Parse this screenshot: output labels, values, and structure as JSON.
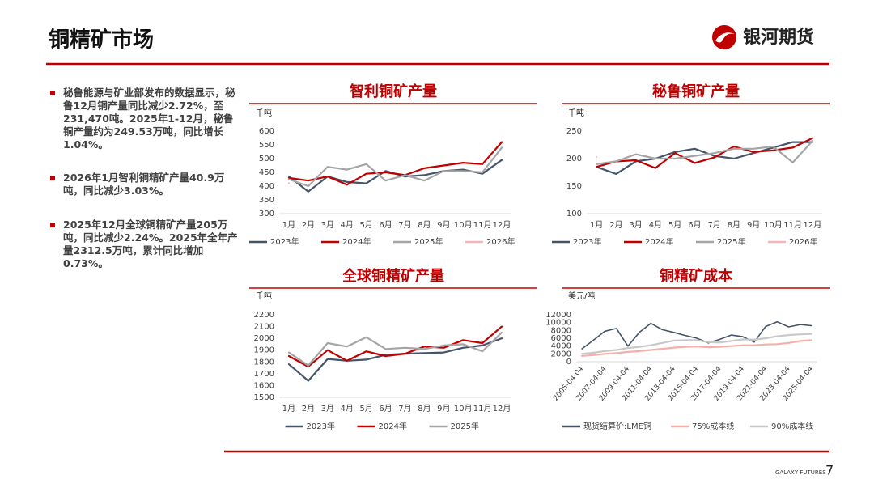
{
  "header": {
    "title": "铜精矿市场",
    "logo": "银河期货"
  },
  "bullets": [
    "秘鲁能源与矿业部发布的数据显示，秘鲁12月铜产量同比减少2.72%，至231,470吨。2025年1-12月，秘鲁铜产量约为249.53万吨，同比增长1.04%。",
    "2026年1月智利铜精矿产量40.9万吨，同比减少3.03%。",
    "2025年12月全球铜精矿产量205万吨，同比减少2.24%。2025年全年产量2312.5万吨，累计同比增加0.73%。"
  ],
  "chart_data": [
    {
      "type": "line",
      "title": "智利铜矿产量",
      "unit": "千吨",
      "grid": false,
      "categories": [
        "1月",
        "2月",
        "3月",
        "4月",
        "5月",
        "6月",
        "7月",
        "8月",
        "9月",
        "10月",
        "11月",
        "12月"
      ],
      "ylim": [
        300,
        600
      ],
      "yticks": [
        300,
        350,
        400,
        450,
        500,
        550,
        600
      ],
      "series": [
        {
          "name": "2023年",
          "color": "#44546a",
          "values": [
            435,
            380,
            435,
            415,
            410,
            455,
            435,
            440,
            455,
            460,
            445,
            495
          ]
        },
        {
          "name": "2024年",
          "color": "#c00000",
          "values": [
            430,
            420,
            435,
            405,
            445,
            450,
            440,
            465,
            475,
            485,
            480,
            560
          ]
        },
        {
          "name": "2025年",
          "color": "#a5a5a5",
          "values": [
            425,
            400,
            470,
            460,
            480,
            420,
            440,
            420,
            455,
            455,
            450,
            540
          ]
        },
        {
          "name": "2026年",
          "color": "#f4b6b6",
          "values": [
            410,
            null,
            null,
            null,
            null,
            null,
            null,
            null,
            null,
            null,
            null,
            null
          ]
        }
      ]
    },
    {
      "type": "line",
      "title": "秘鲁铜矿产量",
      "unit": "千吨",
      "grid": false,
      "categories": [
        "1月",
        "2月",
        "3月",
        "4月",
        "5月",
        "6月",
        "7月",
        "8月",
        "9月",
        "10月",
        "11月",
        "12月"
      ],
      "ylim": [
        100,
        250
      ],
      "yticks": [
        100,
        150,
        200,
        250
      ],
      "series": [
        {
          "name": "2023年",
          "color": "#44546a",
          "values": [
            185,
            172,
            195,
            200,
            212,
            218,
            205,
            200,
            210,
            220,
            230,
            230
          ]
        },
        {
          "name": "2024年",
          "color": "#c00000",
          "values": [
            185,
            195,
            197,
            183,
            210,
            192,
            202,
            222,
            212,
            215,
            220,
            237
          ]
        },
        {
          "name": "2025年",
          "color": "#a5a5a5",
          "values": [
            190,
            195,
            208,
            200,
            200,
            205,
            210,
            218,
            218,
            222,
            193,
            232
          ]
        },
        {
          "name": "2026年",
          "color": "#f4b6b6",
          "values": [
            203,
            null,
            null,
            null,
            null,
            null,
            null,
            null,
            null,
            null,
            null,
            null
          ]
        }
      ]
    },
    {
      "type": "line",
      "title": "全球铜精矿产量",
      "unit": "千吨",
      "grid": false,
      "categories": [
        "1月",
        "2月",
        "3月",
        "4月",
        "5月",
        "6月",
        "7月",
        "8月",
        "9月",
        "10月",
        "11月",
        "12月"
      ],
      "ylim": [
        1500,
        2200
      ],
      "yticks": [
        1500,
        1600,
        1700,
        1800,
        1900,
        2000,
        2100,
        2200
      ],
      "series": [
        {
          "name": "2023年",
          "color": "#44546a",
          "values": [
            1780,
            1640,
            1825,
            1810,
            1820,
            1860,
            1870,
            1875,
            1880,
            1920,
            1940,
            2000
          ]
        },
        {
          "name": "2024年",
          "color": "#c00000",
          "values": [
            1850,
            1760,
            1900,
            1810,
            1890,
            1850,
            1870,
            1930,
            1920,
            1985,
            1960,
            2100
          ]
        },
        {
          "name": "2025年",
          "color": "#a5a5a5",
          "values": [
            1880,
            1770,
            1960,
            1930,
            2010,
            1910,
            1920,
            1910,
            1940,
            1950,
            1890,
            2050
          ]
        }
      ]
    },
    {
      "type": "line",
      "title": "铜精矿成本",
      "unit": "美元/吨",
      "grid": false,
      "categories": [
        "2005-04-04",
        null,
        "2007-04-04",
        null,
        "2009-04-04",
        null,
        "2011-04-04",
        null,
        "2013-04-04",
        null,
        "2015-04-04",
        null,
        "2017-04-04",
        null,
        "2019-04-04",
        null,
        "2021-04-04",
        null,
        "2023-04-04",
        null,
        "2025-04-04"
      ],
      "ylim": [
        0,
        12000
      ],
      "yticks": [
        0,
        2000,
        4000,
        6000,
        8000,
        10000,
        12000
      ],
      "series": [
        {
          "name": "现货结算价:LME铜",
          "color": "#44546a",
          "values": [
            3300,
            5500,
            7800,
            8500,
            4000,
            7500,
            9800,
            8200,
            7500,
            6700,
            6000,
            4800,
            5700,
            6800,
            6400,
            5000,
            9000,
            10200,
            8900,
            9500,
            9200
          ]
        },
        {
          "name": "75%成本线",
          "color": "#f4b0a8",
          "values": [
            1500,
            1700,
            2000,
            2200,
            2500,
            2700,
            3000,
            3300,
            3600,
            3800,
            3900,
            3700,
            3800,
            4000,
            4200,
            4200,
            4400,
            4500,
            4800,
            5300,
            5500
          ]
        },
        {
          "name": "90%成本线",
          "color": "#c8c8c8",
          "values": [
            2000,
            2300,
            2700,
            3000,
            3500,
            3800,
            4200,
            4800,
            5400,
            5500,
            5500,
            5000,
            4900,
            5300,
            5700,
            5600,
            6000,
            6500,
            6800,
            7000,
            7100
          ]
        }
      ]
    }
  ],
  "footer": {
    "brand": "GALAXY FUTURES",
    "page": "7"
  }
}
